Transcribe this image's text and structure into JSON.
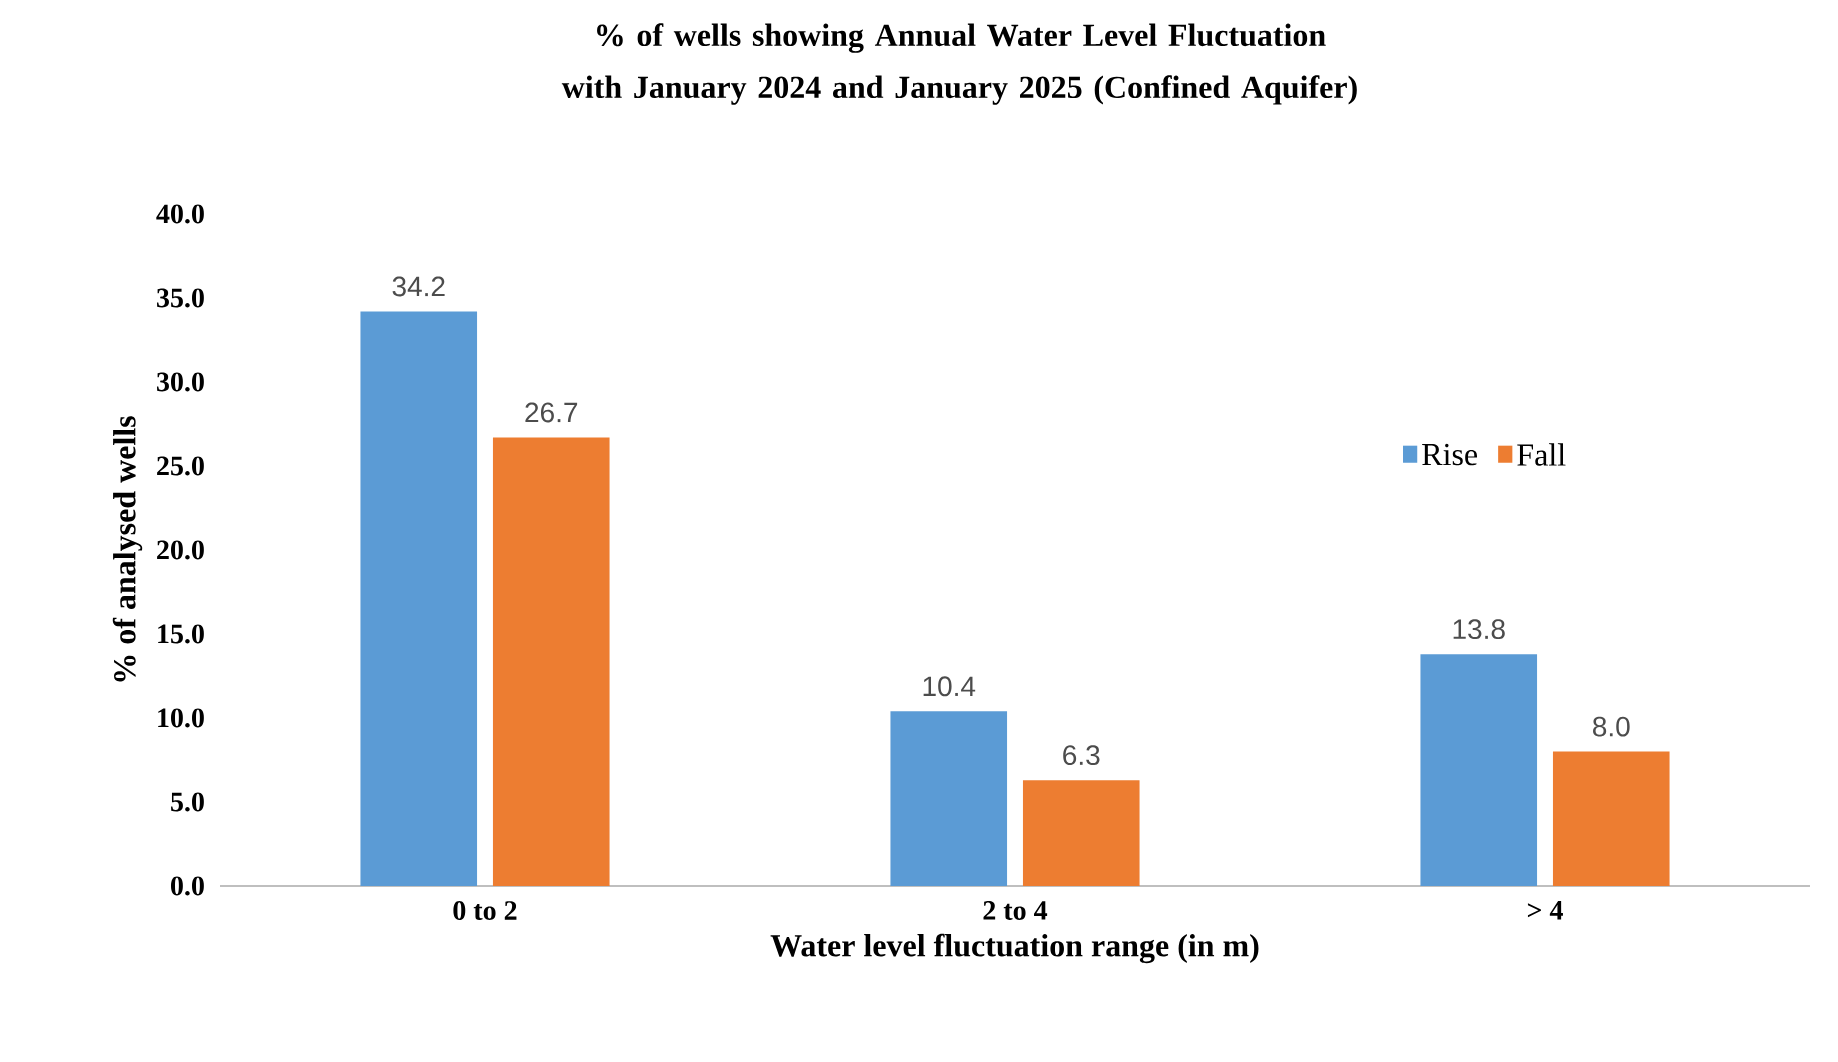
{
  "chart_data": {
    "type": "bar",
    "title": "% of wells showing Annual Water Level Fluctuation with January 2024 and January 2025 (Confined Aquifer)",
    "xlabel": "Water level fluctuation range (in m)",
    "ylabel": "% of analysed wells",
    "categories": [
      "0 to 2",
      "2 to 4",
      "> 4"
    ],
    "series": [
      {
        "name": "Rise",
        "color": "#5b9bd5",
        "values": [
          34.2,
          10.4,
          13.8
        ],
        "value_labels": [
          "34.2",
          "10.4",
          "13.8"
        ]
      },
      {
        "name": "Fall",
        "color": "#ed7d31",
        "values": [
          26.7,
          6.3,
          8.0
        ],
        "value_labels": [
          "26.7",
          "6.3",
          "8.0"
        ]
      }
    ],
    "ylim": [
      0,
      40
    ],
    "yticks": [
      {
        "value": 0,
        "label": "0.0"
      },
      {
        "value": 5,
        "label": "5.0"
      },
      {
        "value": 10,
        "label": "10.0"
      },
      {
        "value": 15,
        "label": "15.0"
      },
      {
        "value": 20,
        "label": "20.0"
      },
      {
        "value": 25,
        "label": "25.0"
      },
      {
        "value": 30,
        "label": "30.0"
      },
      {
        "value": 35,
        "label": "35.0"
      },
      {
        "value": 40,
        "label": "40.0"
      }
    ],
    "legend": "right",
    "grid": false
  }
}
